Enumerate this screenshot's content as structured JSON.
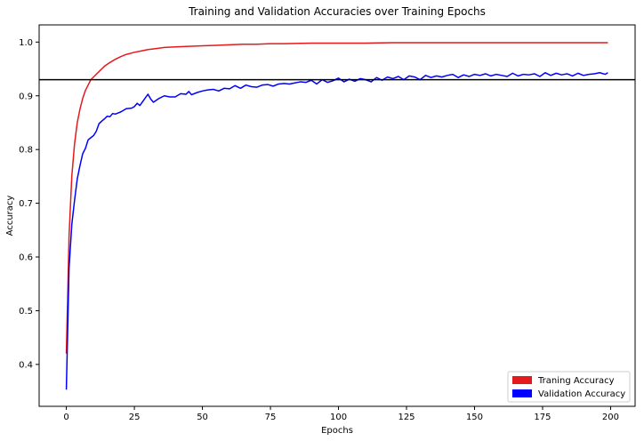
{
  "chart_data": {
    "type": "line",
    "title": "Training and Validation Accuracies over Training Epochs",
    "xlabel": "Epochs",
    "ylabel": "Accuracy",
    "xlim": [
      -10,
      209
    ],
    "ylim": [
      0.322,
      1.032
    ],
    "xticks": [
      0,
      25,
      50,
      75,
      100,
      125,
      150,
      175,
      200
    ],
    "yticks": [
      0.4,
      0.5,
      0.6,
      0.7,
      0.8,
      0.9,
      1.0
    ],
    "xtick_labels": [
      "0",
      "25",
      "50",
      "75",
      "100",
      "125",
      "150",
      "175",
      "200"
    ],
    "ytick_labels": [
      "0.4",
      "0.5",
      "0.6",
      "0.7",
      "0.8",
      "0.9",
      "1.0"
    ],
    "grid": false,
    "legend_position": "lower-right",
    "reference_line": {
      "y": 0.93,
      "color": "#000000"
    },
    "series": [
      {
        "name": "Traning Accuracy",
        "color": "#e41a1c",
        "x": [
          0,
          1,
          2,
          3,
          4,
          5,
          6,
          7,
          8,
          9,
          10,
          12,
          14,
          16,
          18,
          20,
          22,
          25,
          28,
          30,
          33,
          36,
          40,
          45,
          50,
          55,
          60,
          65,
          70,
          75,
          80,
          90,
          100,
          110,
          120,
          130,
          140,
          150,
          160,
          170,
          180,
          190,
          199
        ],
        "y": [
          0.42,
          0.64,
          0.75,
          0.81,
          0.85,
          0.875,
          0.895,
          0.91,
          0.92,
          0.93,
          0.935,
          0.945,
          0.955,
          0.962,
          0.968,
          0.973,
          0.977,
          0.981,
          0.984,
          0.986,
          0.988,
          0.99,
          0.991,
          0.992,
          0.993,
          0.994,
          0.995,
          0.996,
          0.996,
          0.997,
          0.997,
          0.998,
          0.998,
          0.998,
          0.999,
          0.999,
          0.999,
          0.999,
          0.999,
          0.999,
          0.999,
          0.999,
          0.999
        ]
      },
      {
        "name": "Validation Accuracy",
        "color": "#0000ff",
        "x": [
          0,
          1,
          2,
          3,
          4,
          5,
          6,
          7,
          8,
          9,
          10,
          11,
          12,
          13,
          14,
          15,
          16,
          17,
          18,
          20,
          22,
          24,
          25,
          26,
          27,
          28,
          30,
          31,
          32,
          34,
          36,
          38,
          40,
          42,
          44,
          45,
          46,
          48,
          50,
          52,
          54,
          56,
          58,
          60,
          62,
          64,
          66,
          68,
          70,
          72,
          74,
          76,
          78,
          80,
          82,
          84,
          86,
          88,
          90,
          92,
          94,
          96,
          98,
          100,
          102,
          104,
          106,
          108,
          110,
          112,
          114,
          116,
          118,
          120,
          122,
          124,
          126,
          128,
          130,
          132,
          134,
          136,
          138,
          140,
          142,
          144,
          146,
          148,
          150,
          152,
          154,
          156,
          158,
          160,
          162,
          164,
          166,
          168,
          170,
          172,
          174,
          176,
          178,
          180,
          182,
          184,
          186,
          188,
          190,
          192,
          194,
          196,
          198,
          199
        ],
        "y": [
          0.353,
          0.58,
          0.66,
          0.705,
          0.745,
          0.77,
          0.792,
          0.802,
          0.818,
          0.822,
          0.826,
          0.834,
          0.848,
          0.853,
          0.857,
          0.862,
          0.861,
          0.867,
          0.866,
          0.87,
          0.876,
          0.877,
          0.88,
          0.886,
          0.882,
          0.889,
          0.903,
          0.894,
          0.888,
          0.895,
          0.9,
          0.898,
          0.898,
          0.904,
          0.903,
          0.908,
          0.902,
          0.906,
          0.909,
          0.911,
          0.912,
          0.909,
          0.914,
          0.913,
          0.919,
          0.914,
          0.92,
          0.917,
          0.916,
          0.92,
          0.921,
          0.918,
          0.922,
          0.923,
          0.922,
          0.924,
          0.926,
          0.925,
          0.929,
          0.922,
          0.93,
          0.925,
          0.928,
          0.933,
          0.926,
          0.931,
          0.927,
          0.932,
          0.93,
          0.926,
          0.934,
          0.929,
          0.935,
          0.932,
          0.936,
          0.93,
          0.937,
          0.935,
          0.93,
          0.938,
          0.934,
          0.937,
          0.935,
          0.938,
          0.94,
          0.934,
          0.939,
          0.936,
          0.94,
          0.938,
          0.941,
          0.937,
          0.94,
          0.938,
          0.936,
          0.942,
          0.937,
          0.94,
          0.939,
          0.941,
          0.936,
          0.943,
          0.938,
          0.942,
          0.939,
          0.941,
          0.937,
          0.942,
          0.938,
          0.94,
          0.941,
          0.943,
          0.94,
          0.943
        ]
      }
    ]
  }
}
